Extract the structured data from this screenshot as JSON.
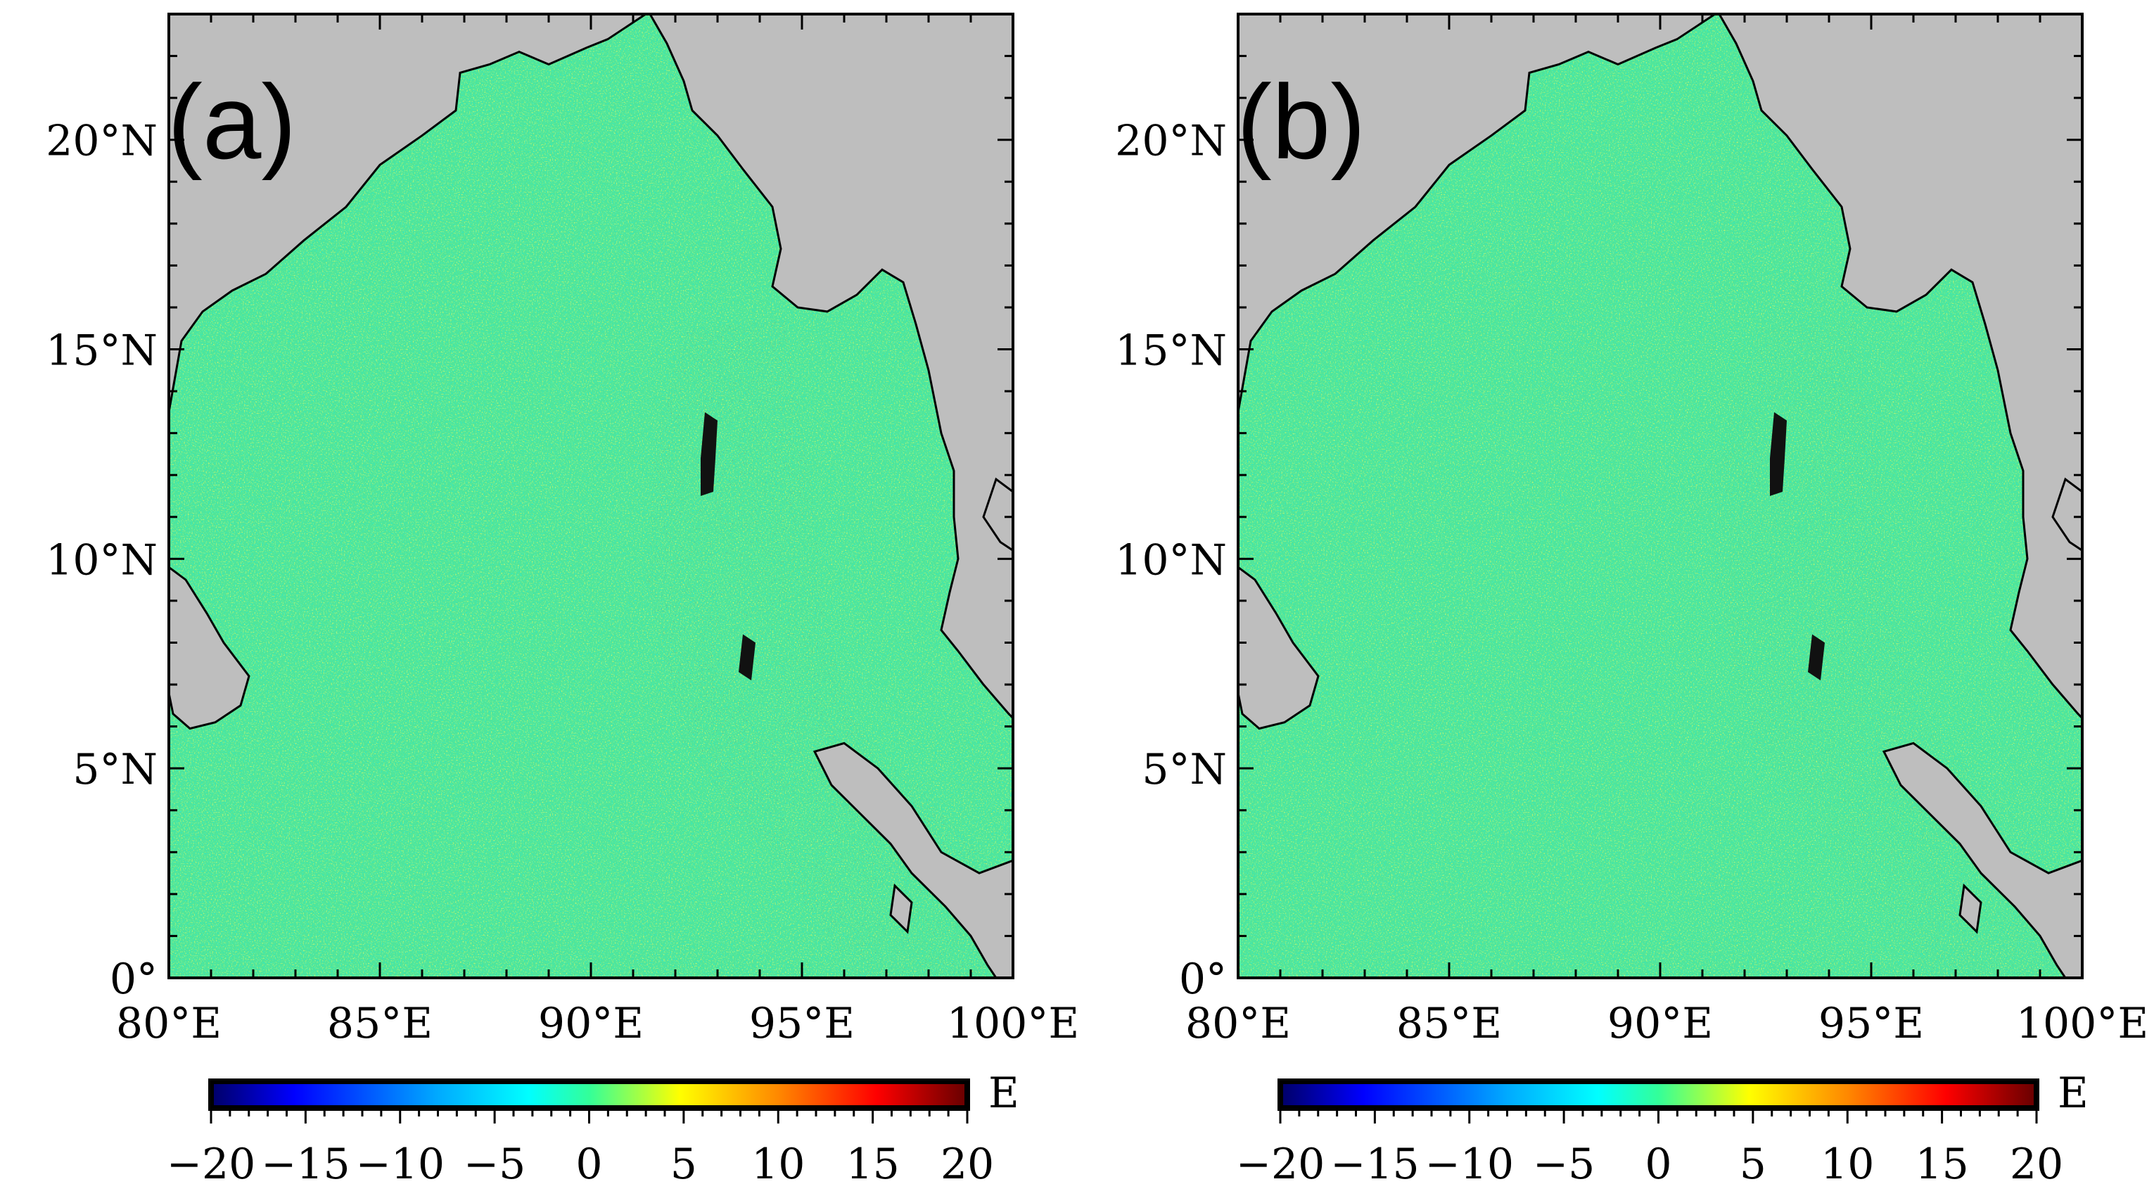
{
  "figure": {
    "panels": [
      {
        "label": "(a)",
        "lat_ticks": [
          "20°N",
          "15°N",
          "10°N",
          "5°N",
          "0°"
        ],
        "lon_ticks": [
          "80°E",
          "85°E",
          "90°E",
          "95°E",
          "100°E"
        ],
        "colorbar": {
          "unit": "E",
          "ticks": [
            "−20",
            "−15",
            "−10",
            "−5",
            "0",
            "5",
            "10",
            "15",
            "20"
          ],
          "range": [
            -20,
            20
          ]
        }
      },
      {
        "label": "(b)",
        "lat_ticks": [
          "20°N",
          "15°N",
          "10°N",
          "5°N",
          "0°"
        ],
        "lon_ticks": [
          "80°E",
          "85°E",
          "90°E",
          "95°E",
          "100°E"
        ],
        "colorbar": {
          "unit": "E",
          "ticks": [
            "−20",
            "−15",
            "−10",
            "−5",
            "0",
            "5",
            "10",
            "15",
            "20"
          ],
          "range": [
            -20,
            20
          ]
        }
      }
    ],
    "extent": {
      "lon": [
        80,
        100
      ],
      "lat": [
        0,
        23
      ]
    },
    "colors": {
      "land": "#bebebe",
      "ocean_base": "#4fe59a",
      "colormap": [
        "#000066",
        "#0000ff",
        "#00aaff",
        "#00ffff",
        "#33ff99",
        "#ffff00",
        "#ff8800",
        "#ff0000",
        "#660000"
      ]
    }
  }
}
